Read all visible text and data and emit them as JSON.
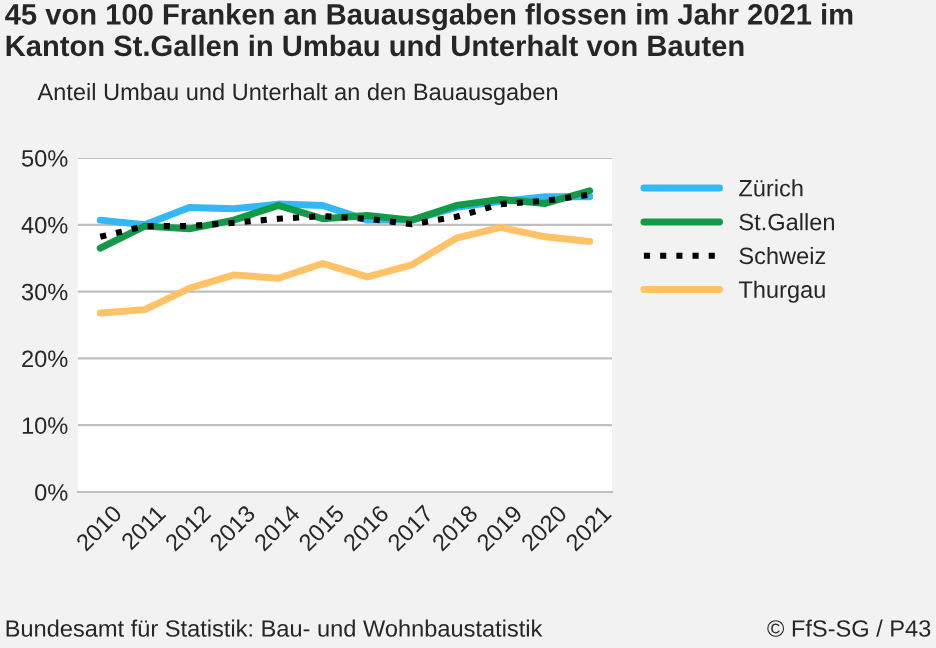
{
  "chart_data": {
    "type": "line",
    "title": "45 von 100 Franken an Bauausgaben flossen im Jahr 2021 im Kanton St.Gallen in Umbau und Unterhalt von Bauten",
    "ylabel": "Anteil Umbau und Unterhalt an den Bauausgaben",
    "categories": [
      "2010",
      "2011",
      "2012",
      "2013",
      "2014",
      "2015",
      "2016",
      "2017",
      "2018",
      "2019",
      "2020",
      "2021"
    ],
    "series": [
      {
        "name": "Zürich",
        "color": "#33b8f5",
        "values": [
          40.7,
          40.0,
          42.6,
          42.4,
          43.1,
          42.9,
          40.7,
          40.7,
          42.6,
          43.5,
          44.2,
          44.2
        ]
      },
      {
        "name": "St.Gallen",
        "color": "#139a48",
        "values": [
          36.5,
          39.8,
          39.4,
          40.7,
          42.9,
          40.9,
          41.4,
          40.7,
          42.9,
          43.8,
          43.2,
          45.1
        ]
      },
      {
        "name": "Schweiz",
        "color": "#000000",
        "line_style": "dotted",
        "values": [
          38.2,
          39.8,
          39.8,
          40.3,
          40.9,
          41.3,
          40.9,
          40.1,
          41.2,
          43.1,
          43.6,
          44.5
        ]
      },
      {
        "name": "Thurgau",
        "color": "#ffc266",
        "values": [
          26.8,
          27.3,
          30.5,
          32.5,
          32.0,
          34.2,
          32.2,
          34.0,
          38.0,
          39.6,
          38.2,
          37.5
        ]
      }
    ],
    "ylim": [
      0,
      50
    ],
    "yticks": [
      {
        "value": 0,
        "label": "0%"
      },
      {
        "value": 10,
        "label": "10%"
      },
      {
        "value": 20,
        "label": "20%"
      },
      {
        "value": 30,
        "label": "30%"
      },
      {
        "value": 40,
        "label": "40%"
      },
      {
        "value": 50,
        "label": "50%"
      }
    ],
    "grid": "y",
    "legend": "right",
    "marker": "none",
    "annotations": [
      "Bundesamt für Statistik: Bau- und Wohnbaustatistik",
      "© FfS-SG / P43"
    ]
  }
}
